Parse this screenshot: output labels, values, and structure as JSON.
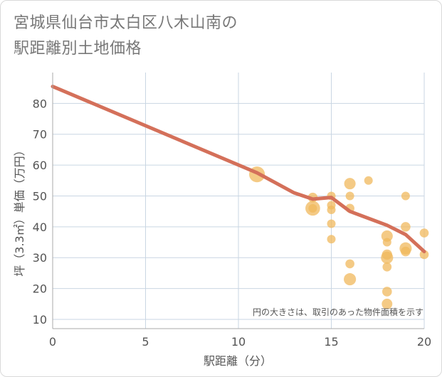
{
  "title_line1": "宮城県仙台市太白区八木山南の",
  "title_line2": "駅距離別土地価格",
  "chart_data": {
    "type": "scatter",
    "xlabel": "駅距離（分）",
    "ylabel": "坪（3.3㎡）単価（万円）",
    "xlim": [
      0,
      20
    ],
    "ylim": [
      7,
      90
    ],
    "xticks": [
      0,
      5,
      10,
      15,
      20
    ],
    "yticks": [
      10,
      20,
      30,
      40,
      50,
      60,
      70,
      80
    ],
    "grid": true,
    "note": "円の大きさは、取引のあった物件面積を示す",
    "colors": {
      "bubble": "#f0b85c",
      "trend": "#d4705a",
      "grid": "#c9d6e3",
      "axis": "#aaaaaa"
    },
    "trend_line": {
      "x": [
        0,
        11,
        13,
        14,
        15,
        16,
        18,
        19,
        20
      ],
      "y": [
        85.5,
        57.5,
        51,
        49,
        49.5,
        45,
        40.5,
        37.5,
        32
      ]
    },
    "points": [
      {
        "x": 11,
        "y": 57,
        "size": 6
      },
      {
        "x": 14,
        "y": 46,
        "size": 5
      },
      {
        "x": 14,
        "y": 49.5,
        "size": 1.5
      },
      {
        "x": 14,
        "y": 46,
        "size": 1
      },
      {
        "x": 15,
        "y": 50,
        "size": 1
      },
      {
        "x": 15,
        "y": 47,
        "size": 1
      },
      {
        "x": 15,
        "y": 45.5,
        "size": 1
      },
      {
        "x": 15,
        "y": 41,
        "size": 1
      },
      {
        "x": 15,
        "y": 36,
        "size": 1
      },
      {
        "x": 16,
        "y": 54,
        "size": 2.5
      },
      {
        "x": 16,
        "y": 50,
        "size": 1
      },
      {
        "x": 16,
        "y": 46,
        "size": 1.2
      },
      {
        "x": 16,
        "y": 28,
        "size": 1.2
      },
      {
        "x": 16,
        "y": 23,
        "size": 3
      },
      {
        "x": 17,
        "y": 55,
        "size": 1
      },
      {
        "x": 18,
        "y": 37,
        "size": 2.5
      },
      {
        "x": 18,
        "y": 35,
        "size": 1
      },
      {
        "x": 18,
        "y": 31,
        "size": 1.8
      },
      {
        "x": 18,
        "y": 30,
        "size": 3
      },
      {
        "x": 18,
        "y": 27,
        "size": 1.2
      },
      {
        "x": 18,
        "y": 19,
        "size": 1.5
      },
      {
        "x": 18,
        "y": 15,
        "size": 2
      },
      {
        "x": 19,
        "y": 50,
        "size": 1
      },
      {
        "x": 19,
        "y": 40,
        "size": 1.5
      },
      {
        "x": 19,
        "y": 33,
        "size": 3
      },
      {
        "x": 19,
        "y": 32,
        "size": 1.5
      },
      {
        "x": 20,
        "y": 38,
        "size": 1.2
      },
      {
        "x": 20,
        "y": 31,
        "size": 1.2
      }
    ]
  }
}
